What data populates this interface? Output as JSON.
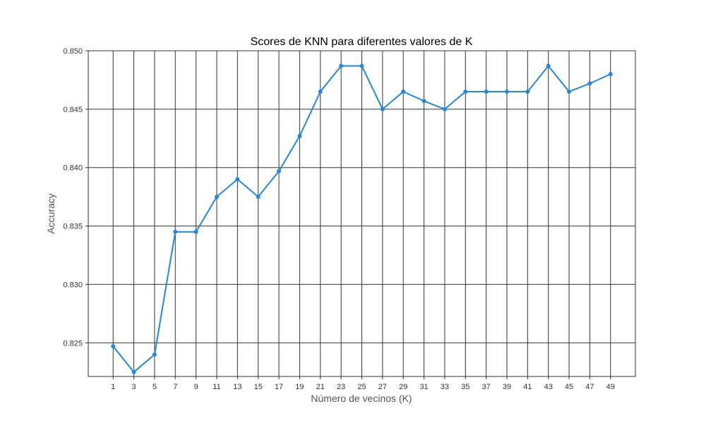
{
  "chart_data": {
    "type": "line",
    "title": "Scores de KNN para diferentes valores de K",
    "xlabel": "Número de vecinos (K)",
    "ylabel": "Accuracy",
    "x": [
      1,
      3,
      5,
      7,
      9,
      11,
      13,
      15,
      17,
      19,
      21,
      23,
      25,
      27,
      29,
      31,
      33,
      35,
      37,
      39,
      41,
      43,
      45,
      47,
      49
    ],
    "series": [
      {
        "values": [
          0.8247,
          0.8225,
          0.824,
          0.8345,
          0.8345,
          0.8375,
          0.839,
          0.8375,
          0.8397,
          0.8427,
          0.8465,
          0.8487,
          0.8487,
          0.845,
          0.8465,
          0.8457,
          0.845,
          0.8465,
          0.8465,
          0.8465,
          0.8465,
          0.8487,
          0.8465,
          0.8472,
          0.848
        ],
        "color": "#1f88e0"
      }
    ],
    "xticks": [
      "1",
      "3",
      "5",
      "7",
      "9",
      "11",
      "13",
      "15",
      "17",
      "19",
      "21",
      "23",
      "25",
      "27",
      "29",
      "31",
      "33",
      "35",
      "37",
      "39",
      "41",
      "43",
      "45",
      "47",
      "49"
    ],
    "yticks": [
      {
        "value": 0.825,
        "label": "0.825"
      },
      {
        "value": 0.83,
        "label": "0.830"
      },
      {
        "value": 0.835,
        "label": "0.835"
      },
      {
        "value": 0.84,
        "label": "0.840"
      },
      {
        "value": 0.845,
        "label": "0.845"
      },
      {
        "value": 0.85,
        "label": "0.850"
      }
    ],
    "xlim": [
      -1.4,
      51.4
    ],
    "ylim": [
      0.82212,
      0.85
    ],
    "grid": true,
    "grid_color": "#333333",
    "legend": "none"
  }
}
